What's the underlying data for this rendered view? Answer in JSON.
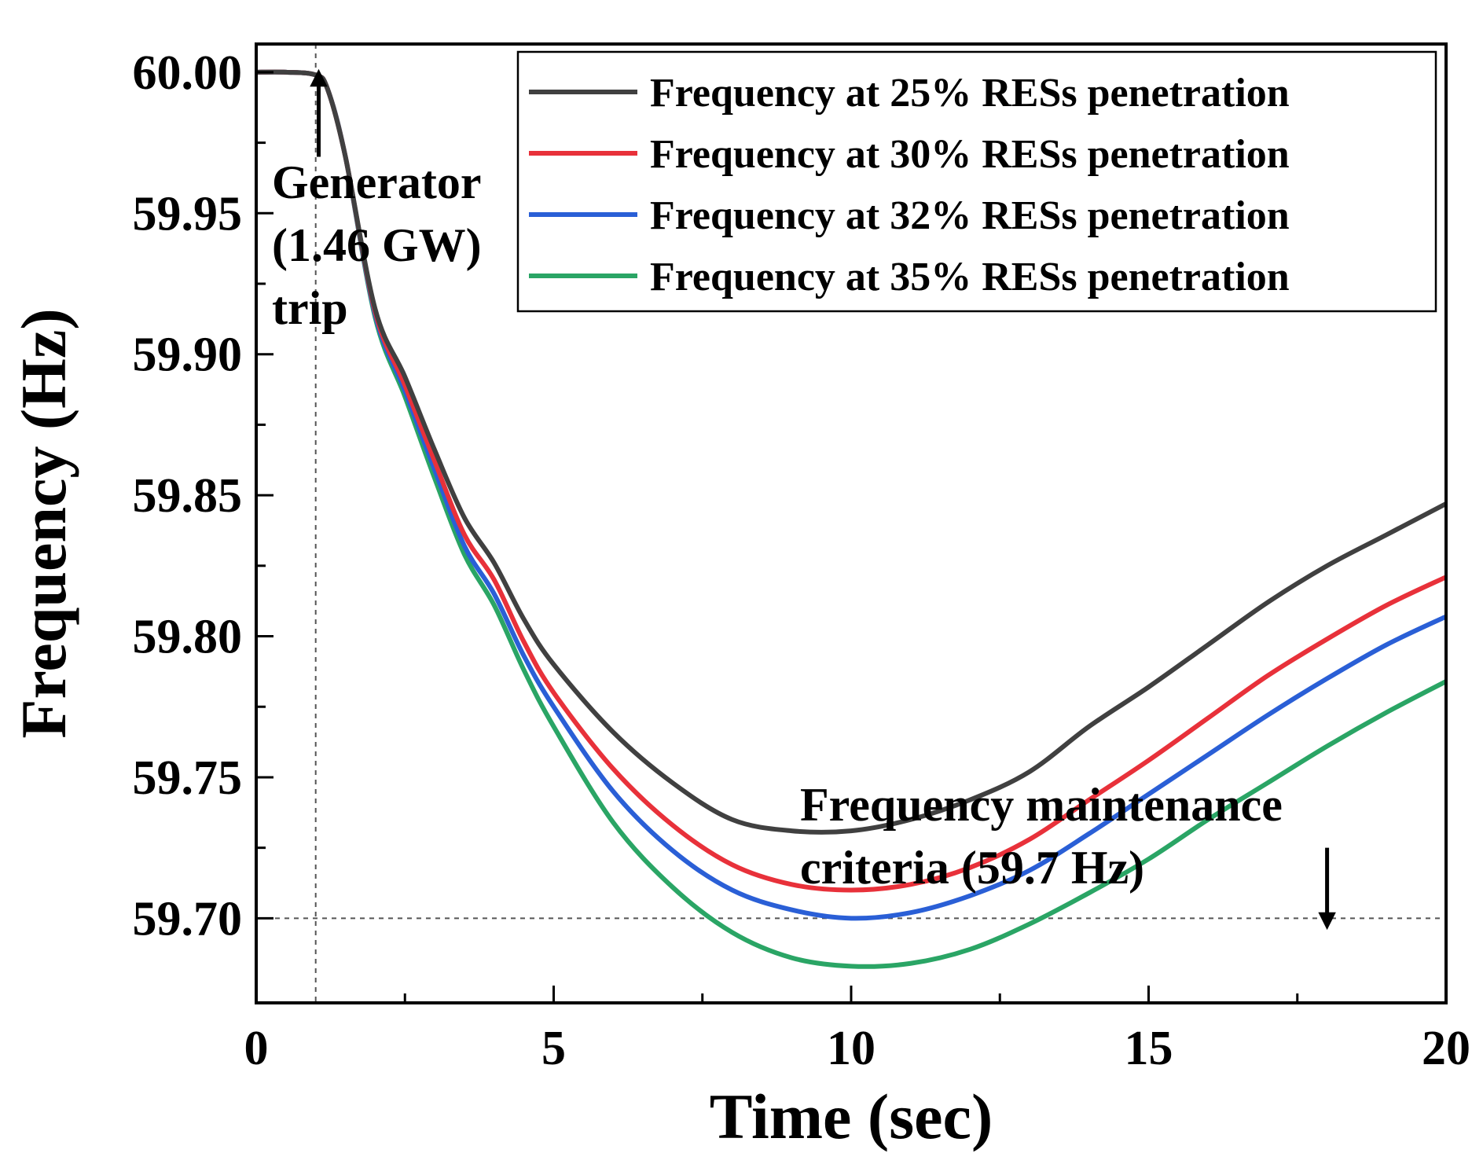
{
  "chart_data": {
    "type": "line",
    "title": "",
    "xlabel": "Time (sec)",
    "ylabel": "Frequency (Hz)",
    "xlim": [
      0,
      20
    ],
    "ylim": [
      59.67,
      60.01
    ],
    "xticks": [
      0,
      5,
      10,
      15,
      20
    ],
    "xtick_labels": [
      "0",
      "5",
      "10",
      "15",
      "20"
    ],
    "yticks": [
      59.7,
      59.75,
      59.8,
      59.85,
      59.9,
      59.95,
      60.0
    ],
    "ytick_labels": [
      "59.70",
      "59.75",
      "59.80",
      "59.85",
      "59.90",
      "59.95",
      "60.00"
    ],
    "grid": false,
    "legend_position": "top-right",
    "x": [
      0,
      0.5,
      1,
      1.2,
      1.5,
      2,
      2.5,
      3,
      3.5,
      4,
      4.5,
      5,
      6,
      7,
      8,
      9,
      10,
      11,
      12,
      13,
      14,
      15,
      16,
      17,
      18,
      19,
      20
    ],
    "series": [
      {
        "name": "Frequency at 25% RESs penetration",
        "color": "#404040",
        "values": [
          60.0,
          60.0,
          59.999,
          59.994,
          59.97,
          59.916,
          59.892,
          59.866,
          59.842,
          59.826,
          59.806,
          59.79,
          59.766,
          59.748,
          59.735,
          59.731,
          59.731,
          59.735,
          59.742,
          59.752,
          59.768,
          59.782,
          59.797,
          59.812,
          59.825,
          59.836,
          59.847
        ]
      },
      {
        "name": "Frequency at 30% RESs penetration",
        "color": "#e8313a",
        "values": [
          60.0,
          60.0,
          59.999,
          59.994,
          59.97,
          59.915,
          59.889,
          59.862,
          59.836,
          59.82,
          59.798,
          59.78,
          59.753,
          59.733,
          59.719,
          59.712,
          59.71,
          59.712,
          59.718,
          59.728,
          59.742,
          59.756,
          59.771,
          59.786,
          59.799,
          59.811,
          59.821
        ]
      },
      {
        "name": "Frequency at 32% RESs penetration",
        "color": "#2a5fd6",
        "values": [
          60.0,
          60.0,
          59.999,
          59.994,
          59.97,
          59.914,
          59.887,
          59.859,
          59.832,
          59.815,
          59.793,
          59.775,
          59.745,
          59.724,
          59.71,
          59.703,
          59.7,
          59.702,
          59.708,
          59.717,
          59.73,
          59.744,
          59.758,
          59.772,
          59.785,
          59.797,
          59.807
        ]
      },
      {
        "name": "Frequency at 35% RESs penetration",
        "color": "#2aa565",
        "values": [
          60.0,
          60.0,
          59.999,
          59.994,
          59.97,
          59.913,
          59.885,
          59.856,
          59.829,
          59.811,
          59.788,
          59.768,
          59.734,
          59.711,
          59.695,
          59.686,
          59.683,
          59.684,
          59.689,
          59.698,
          59.709,
          59.721,
          59.735,
          59.748,
          59.761,
          59.773,
          59.784
        ]
      }
    ],
    "reference_lines": [
      {
        "axis": "x",
        "value": 1,
        "style": "dashed",
        "color": "#555555"
      },
      {
        "axis": "y",
        "value": 59.7,
        "style": "dashed",
        "color": "#555555"
      }
    ],
    "annotations": [
      {
        "lines": [
          "Generator",
          "(1.46 GW)",
          "trip"
        ],
        "arrow": "up",
        "arrow_x": 1.05,
        "arrow_from_y": 59.97,
        "arrow_to_y": 59.998
      },
      {
        "lines": [
          "Frequency maintenance",
          "criteria (59.7 Hz)"
        ],
        "arrow": "down",
        "arrow_x": 18.0,
        "arrow_from_y": 59.725,
        "arrow_to_y": 59.699
      }
    ]
  }
}
